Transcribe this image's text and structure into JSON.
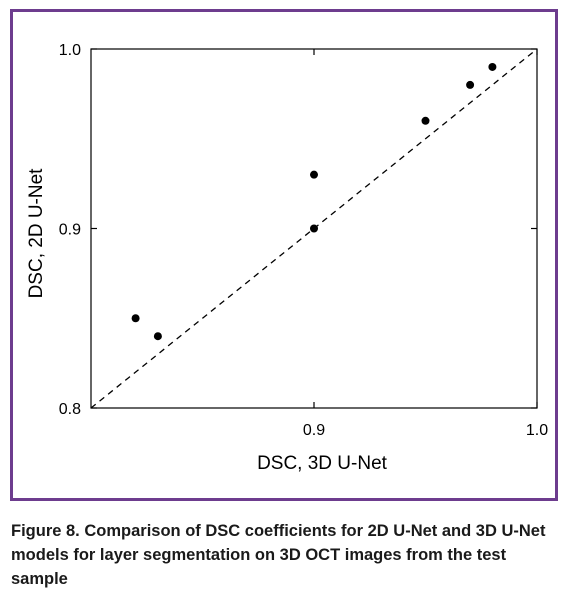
{
  "figure_border_color": "#6d3c8e",
  "caption": "Figure 8. Comparison of DSC coefficients for 2D U-Net and 3D U-Net models for layer segmentation on 3D OCT images from the test sample",
  "chart_data": {
    "type": "scatter",
    "xlabel": "DSC, 3D U-Net",
    "ylabel": "DSC, 2D U-Net",
    "xlim": [
      0.8,
      1.0
    ],
    "ylim": [
      0.8,
      1.0
    ],
    "xticks": [
      0.9,
      1.0
    ],
    "xtick_labels": [
      "0.9",
      "1.0"
    ],
    "yticks": [
      0.8,
      0.9,
      1.0
    ],
    "ytick_labels": [
      "0.8",
      "0.9",
      "1.0"
    ],
    "grid": false,
    "reference_line": {
      "style": "dashed",
      "from": [
        0.8,
        0.8
      ],
      "to": [
        1.0,
        1.0
      ]
    },
    "points": [
      {
        "x": 0.82,
        "y": 0.85
      },
      {
        "x": 0.83,
        "y": 0.84
      },
      {
        "x": 0.9,
        "y": 0.93
      },
      {
        "x": 0.9,
        "y": 0.9
      },
      {
        "x": 0.95,
        "y": 0.96
      },
      {
        "x": 0.97,
        "y": 0.98
      },
      {
        "x": 0.98,
        "y": 0.99
      }
    ]
  }
}
